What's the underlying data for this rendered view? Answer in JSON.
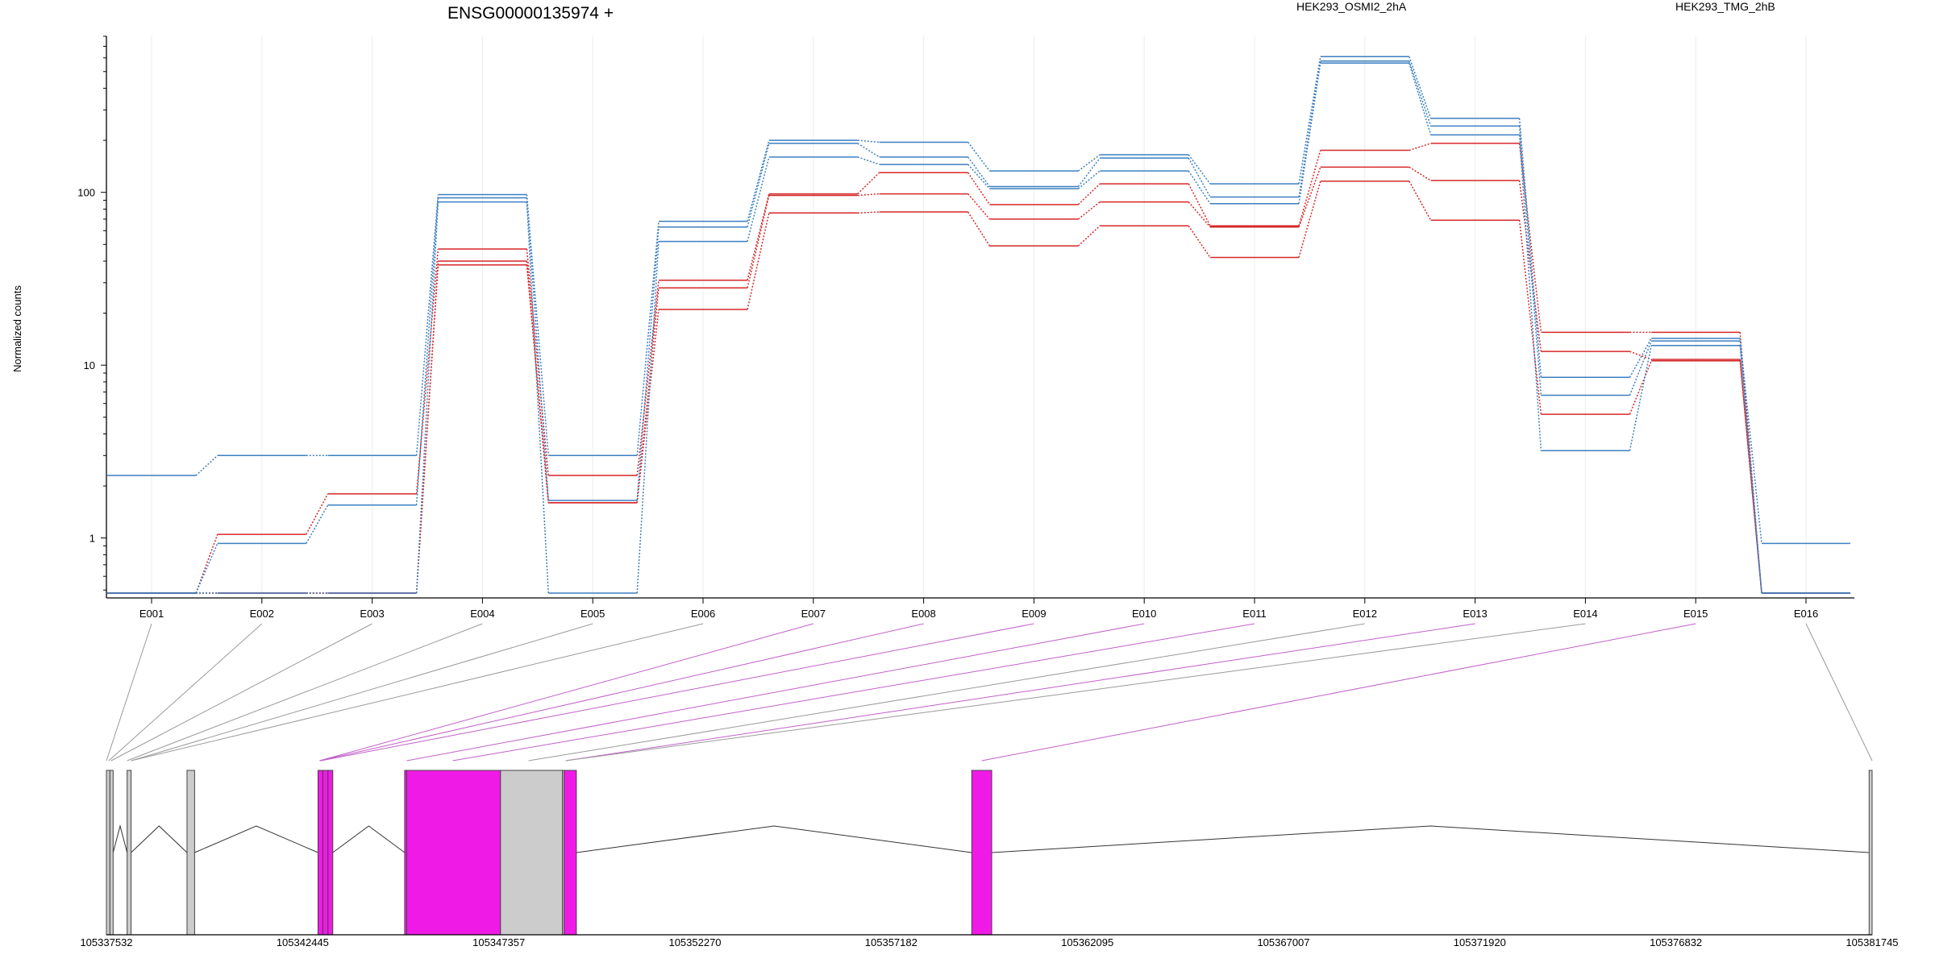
{
  "chart_data": {
    "type": "line",
    "title": "ENSG00000135974 +",
    "ylabel": "Normalized counts",
    "y_scale": "log",
    "ylim": [
      0.45,
      800
    ],
    "y_ticks": [
      1,
      10,
      100
    ],
    "y_tick_labels": [
      "1",
      "10",
      "100"
    ],
    "grid": "vertical lines at exon centers",
    "legend_placement": "top",
    "categories": [
      "E001",
      "E002",
      "E003",
      "E004",
      "E005",
      "E006",
      "E007",
      "E008",
      "E009",
      "E010",
      "E011",
      "E012",
      "E013",
      "E014",
      "E015",
      "E016"
    ],
    "groups": [
      {
        "name": "HEK293_OSMI2_2hA",
        "color": "#d62728"
      },
      {
        "name": "HEK293_TMG_2hB",
        "color": "#3b7fc0"
      }
    ],
    "series": [
      {
        "group": "HEK293_OSMI2_2hA",
        "values": [
          0.48,
          1.05,
          1.8,
          47,
          2.3,
          31,
          98,
          130,
          85,
          112,
          64,
          175,
          192,
          15.5,
          15.5,
          0.48
        ]
      },
      {
        "group": "HEK293_OSMI2_2hA",
        "values": [
          0.48,
          0.48,
          0.48,
          40,
          1.6,
          28,
          96,
          98,
          70,
          88,
          63,
          140,
          117,
          12,
          10.8,
          0.48
        ]
      },
      {
        "group": "HEK293_OSMI2_2hA",
        "values": [
          0.48,
          0.48,
          0.48,
          38,
          1.6,
          21,
          76,
          77,
          49,
          64,
          42,
          116,
          69,
          5.2,
          10.6,
          0.48
        ]
      },
      {
        "group": "HEK293_TMG_2hB",
        "values": [
          2.3,
          3.0,
          3.0,
          97,
          3.0,
          68,
          200,
          195,
          133,
          165,
          112,
          610,
          268,
          8.5,
          14.3,
          0.93
        ]
      },
      {
        "group": "HEK293_TMG_2hB",
        "values": [
          0.48,
          0.93,
          1.55,
          93,
          1.65,
          63,
          192,
          160,
          108,
          158,
          94,
          575,
          242,
          6.7,
          13.8,
          0.48
        ]
      },
      {
        "group": "HEK293_TMG_2hB",
        "values": [
          0.48,
          0.48,
          0.48,
          88,
          0.48,
          52,
          160,
          145,
          105,
          133,
          86,
          560,
          215,
          3.2,
          13.0,
          0.48
        ]
      }
    ],
    "gene_model": {
      "coordinate_ticks": [
        105337532,
        105342445,
        105347357,
        105352270,
        105357182,
        105362095,
        105367007,
        105371920,
        105376832,
        105381745
      ],
      "coordinate_range": [
        105337532,
        105381745
      ],
      "exons": [
        {
          "exon": "E001",
          "start": 105337532,
          "end": 105337620,
          "tested": false
        },
        {
          "exon": "E002",
          "start": 105337620,
          "end": 105337700,
          "tested": false
        },
        {
          "exon": "E003",
          "start": 105338050,
          "end": 105338150,
          "tested": false
        },
        {
          "exon": "E004",
          "start": 105339550,
          "end": 105339740,
          "tested": false
        },
        {
          "exon": "E005",
          "start": 105342830,
          "end": 105342950,
          "tested": true
        },
        {
          "exon": "E006",
          "start": 105342950,
          "end": 105343080,
          "tested": true
        },
        {
          "exon": "E007",
          "start": 105343080,
          "end": 105343200,
          "tested": true
        },
        {
          "exon": "E008",
          "start": 105345000,
          "end": 105345050,
          "tested": true
        },
        {
          "exon": "E009",
          "start": 105345050,
          "end": 105347400,
          "tested": true
        },
        {
          "exon": "E010",
          "start": 105347400,
          "end": 105348950,
          "tested": false
        },
        {
          "exon": "E011",
          "start": 105348950,
          "end": 105348990,
          "tested": false
        },
        {
          "exon": "E012",
          "start": 105348990,
          "end": 105349300,
          "tested": true
        },
        {
          "exon": "E015",
          "start": 105359200,
          "end": 105359700,
          "tested": true
        },
        {
          "exon": "E016",
          "start": 105381670,
          "end": 105381745,
          "tested": false
        }
      ],
      "introns": [
        [
          105337620,
          105337700
        ],
        [
          105337700,
          105338050
        ],
        [
          105338150,
          105339550
        ],
        [
          105339740,
          105342830
        ],
        [
          105343200,
          105345000
        ],
        [
          105349300,
          105359200
        ],
        [
          105359700,
          105381670
        ]
      ],
      "connector_targets": [
        {
          "exon": "E001",
          "coord": 105337532,
          "tested": false
        },
        {
          "exon": "E002",
          "coord": 105337590,
          "tested": false
        },
        {
          "exon": "E003",
          "coord": 105337650,
          "tested": false
        },
        {
          "exon": "E004",
          "coord": 105338050,
          "tested": false
        },
        {
          "exon": "E005",
          "coord": 105338150,
          "tested": false
        },
        {
          "exon": "E006",
          "coord": 105338150,
          "tested": false
        },
        {
          "exon": "E007",
          "coord": 105342870,
          "tested": true
        },
        {
          "exon": "E008",
          "coord": 105342870,
          "tested": true
        },
        {
          "exon": "E009",
          "coord": 105342900,
          "tested": true
        },
        {
          "exon": "E010",
          "coord": 105345050,
          "tested": true
        },
        {
          "exon": "E011",
          "coord": 105346200,
          "tested": true
        },
        {
          "exon": "E012",
          "coord": 105348100,
          "tested": false
        },
        {
          "exon": "E013",
          "coord": 105349030,
          "tested": true
        },
        {
          "exon": "E014",
          "coord": 105349030,
          "tested": false
        },
        {
          "exon": "E015",
          "coord": 105359450,
          "tested": true
        },
        {
          "exon": "E016",
          "coord": 105381745,
          "tested": false
        }
      ]
    }
  },
  "colors": {
    "tested_exon": "#f01ae6",
    "untested_exon": "#cccccc",
    "tested_connector": "#c060c8",
    "untested_connector": "#9a9a9a",
    "grid": "#ececec"
  }
}
